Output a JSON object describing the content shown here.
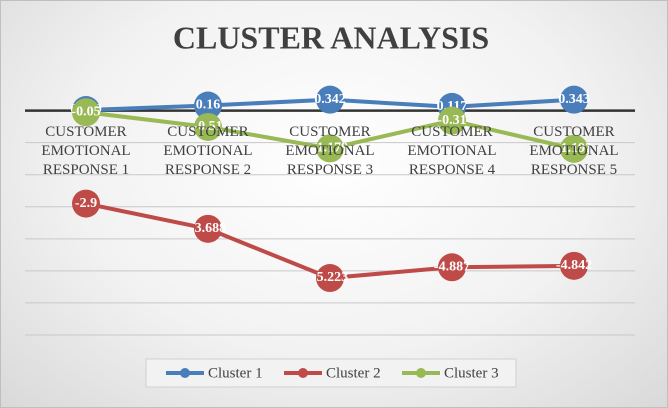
{
  "chart_data": {
    "type": "line",
    "title": "CLUSTER ANALYSIS",
    "categories": [
      "CUSTOMER EMOTIONAL RESPONSE 1",
      "CUSTOMER EMOTIONAL RESPONSE 2",
      "CUSTOMER EMOTIONAL RESPONSE 3",
      "CUSTOMER EMOTIONAL RESPONSE 4",
      "CUSTOMER EMOTIONAL RESPONSE 5"
    ],
    "series": [
      {
        "name": "Cluster 1",
        "color": "#4a7ebb",
        "values": [
          0.019,
          0.16,
          0.342,
          0.117,
          0.343
        ]
      },
      {
        "name": "Cluster 2",
        "color": "#be4b48",
        "values": [
          -2.9,
          -3.688,
          -5.223,
          -4.887,
          -4.842
        ]
      },
      {
        "name": "Cluster 3",
        "color": "#98b954",
        "values": [
          -0.05,
          -0.51,
          -1.179,
          -0.31,
          -1.192
        ]
      }
    ],
    "ylim": [
      -7.5,
      0.8
    ],
    "yticks": [
      0,
      -1,
      -2,
      -3,
      -4,
      -5,
      -6,
      -7
    ],
    "grid": true,
    "legend": "bottom"
  }
}
